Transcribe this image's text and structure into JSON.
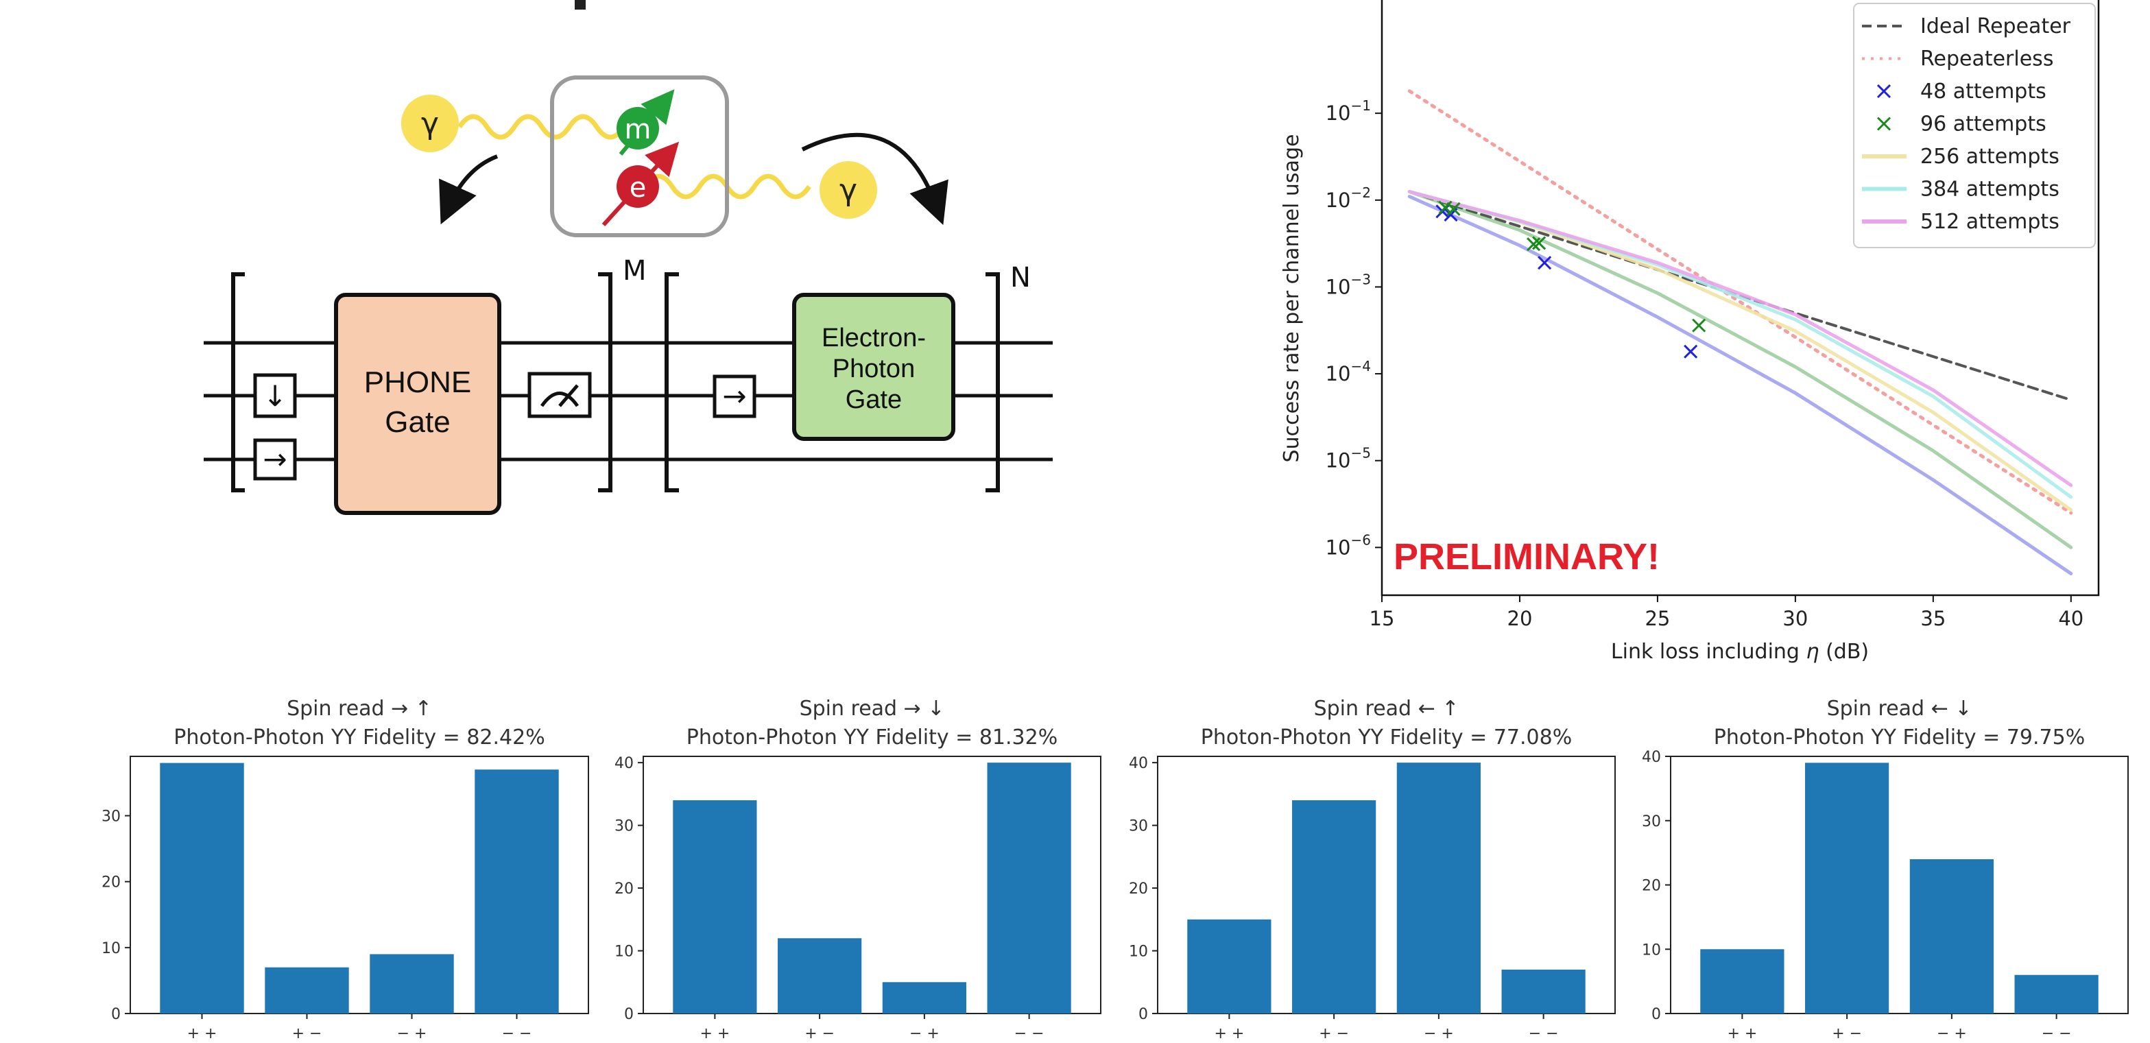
{
  "colors": {
    "bar": "#1f77b4",
    "ideal": "#555555",
    "repeaterless": "#f4a0a0",
    "attempts48": "#2020e0",
    "attempts96": "#1a8a1a",
    "attempts256": "#f2e3a3",
    "attempts384": "#a8ecea",
    "attempts512": "#eaa3ec",
    "photon": "#f8e05a",
    "muon": "#23a13a",
    "electron": "#cc1f2e",
    "phoneGate": "#f8cdaf",
    "epGate": "#b7de9c",
    "preliminary": "#e4202a"
  },
  "diagram": {
    "photon_symbol": "γ",
    "muon_symbol": "m",
    "electron_symbol": "e",
    "phone_gate_line1": "PHONE",
    "phone_gate_line2": "Gate",
    "ep_gate_line1": "Electron-",
    "ep_gate_line2": "Photon",
    "ep_gate_line3": "Gate",
    "label_M": "M",
    "label_N": "N",
    "box_down_glyph": "↓",
    "box_right_glyph": "→",
    "box_right2_glyph": "→"
  },
  "chart_data": [
    {
      "type": "line",
      "xlabel_prefix": "Link loss including ",
      "xlabel_symbol": "η",
      "xlabel_suffix": " (dB)",
      "ylabel": "Success rate per channel usage",
      "yscale": "log",
      "xlim": [
        15,
        41
      ],
      "ylim_exp": [
        -6.55,
        0.32
      ],
      "xticks": [
        "15",
        "20",
        "25",
        "30",
        "35",
        "40"
      ],
      "yticks": [
        {
          "base": "10",
          "exp": "−1",
          "e": -1
        },
        {
          "base": "10",
          "exp": "−2",
          "e": -2
        },
        {
          "base": "10",
          "exp": "−3",
          "e": -3
        },
        {
          "base": "10",
          "exp": "−4",
          "e": -4
        },
        {
          "base": "10",
          "exp": "−5",
          "e": -5
        },
        {
          "base": "10",
          "exp": "−6",
          "e": -6
        }
      ],
      "annotation": "PRELIMINARY!",
      "legend": [
        {
          "name": "Ideal Repeater",
          "style": "dashed",
          "color_key": "ideal"
        },
        {
          "name": "Repeaterless",
          "style": "dotted",
          "color_key": "repeaterless"
        },
        {
          "name": "48 attempts",
          "style": "marker",
          "color_key": "attempts48"
        },
        {
          "name": "96 attempts",
          "style": "marker",
          "color_key": "attempts96"
        },
        {
          "name": "256 attempts",
          "style": "line",
          "color_key": "attempts256"
        },
        {
          "name": "384 attempts",
          "style": "line",
          "color_key": "attempts384"
        },
        {
          "name": "512 attempts",
          "style": "line",
          "color_key": "attempts512"
        }
      ],
      "lines": [
        {
          "key": "ideal",
          "dash": "14,8",
          "width": 4,
          "x": [
            16,
            40
          ],
          "y": [
            0.0125,
            5e-05
          ]
        },
        {
          "key": "repeaterless",
          "dash": "4,9",
          "width": 5,
          "x": [
            16,
            40
          ],
          "y": [
            0.18,
            2.5e-06
          ]
        },
        {
          "key": "attempts48",
          "dash": "",
          "width": 5,
          "x": [
            16,
            20,
            25,
            30,
            35,
            40
          ],
          "y": [
            0.011,
            0.003,
            0.00045,
            6e-05,
            6e-06,
            5e-07
          ]
        },
        {
          "key": "attempts96",
          "dash": "",
          "width": 5,
          "x": [
            16,
            20,
            25,
            30,
            35,
            40
          ],
          "y": [
            0.0125,
            0.0045,
            0.00085,
            0.00012,
            1.3e-05,
            1e-06
          ]
        },
        {
          "key": "attempts256",
          "dash": "",
          "width": 5,
          "x": [
            16,
            20,
            25,
            30,
            35,
            40
          ],
          "y": [
            0.0125,
            0.0056,
            0.0016,
            0.00031,
            3.6e-05,
            2.7e-06
          ]
        },
        {
          "key": "attempts384",
          "dash": "",
          "width": 5,
          "x": [
            16,
            20,
            25,
            30,
            35,
            40
          ],
          "y": [
            0.0125,
            0.0057,
            0.0018,
            0.00042,
            5.5e-05,
            3.8e-06
          ]
        },
        {
          "key": "attempts512",
          "dash": "",
          "width": 5,
          "x": [
            16,
            20,
            25,
            30,
            35,
            40
          ],
          "y": [
            0.0125,
            0.0058,
            0.0019,
            0.00048,
            6.5e-05,
            5.2e-06
          ]
        }
      ],
      "markers": [
        {
          "key": "attempts48",
          "x": [
            17.2,
            17.5,
            20.9,
            26.2
          ],
          "y": [
            0.0074,
            0.0068,
            0.0019,
            0.00018
          ]
        },
        {
          "key": "attempts96",
          "x": [
            17.3,
            17.6,
            20.5,
            20.7,
            26.5
          ],
          "y": [
            0.0082,
            0.0079,
            0.0031,
            0.0032,
            0.00036
          ]
        }
      ]
    },
    {
      "type": "bar",
      "title": "Spin read → ↑",
      "subtitle": "Photon-Photon YY Fidelity = 82.42%",
      "categories": [
        "+ +",
        "+ −",
        "− +",
        "− −"
      ],
      "values": [
        38,
        7,
        9,
        37
      ],
      "yticks": [
        0,
        10,
        20,
        30
      ],
      "ymax": 39
    },
    {
      "type": "bar",
      "title": "Spin read → ↓",
      "subtitle": "Photon-Photon YY Fidelity = 81.32%",
      "categories": [
        "+ +",
        "+ −",
        "− +",
        "− −"
      ],
      "values": [
        34,
        12,
        5,
        40
      ],
      "yticks": [
        0,
        10,
        20,
        30,
        40
      ],
      "ymax": 41
    },
    {
      "type": "bar",
      "title": "Spin read ← ↑",
      "subtitle": "Photon-Photon YY Fidelity = 77.08%",
      "categories": [
        "+ +",
        "+ −",
        "− +",
        "− −"
      ],
      "values": [
        15,
        34,
        40,
        7
      ],
      "yticks": [
        0,
        10,
        20,
        30,
        40
      ],
      "ymax": 41
    },
    {
      "type": "bar",
      "title": "Spin read ← ↓",
      "subtitle": "Photon-Photon YY Fidelity = 79.75%",
      "categories": [
        "+ +",
        "+ −",
        "− +",
        "− −"
      ],
      "values": [
        10,
        39,
        24,
        6
      ],
      "yticks": [
        0,
        10,
        20,
        30,
        40
      ],
      "ymax": 40
    }
  ]
}
